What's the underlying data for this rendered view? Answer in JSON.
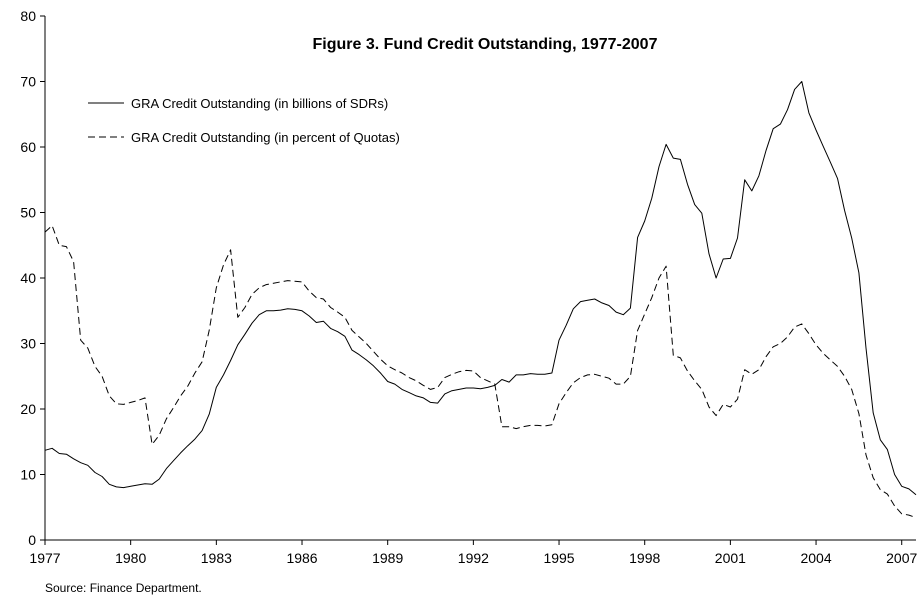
{
  "chart_data": {
    "type": "line",
    "title": "Figure 3. Fund Credit Outstanding, 1977-2007",
    "source": "Source: Finance Department.",
    "xlabel": "",
    "ylabel": "",
    "xlim": [
      1977,
      2007.5
    ],
    "ylim": [
      0,
      80
    ],
    "x_ticks": [
      "1977",
      "1980",
      "1983",
      "1986",
      "1989",
      "1992",
      "1995",
      "1998",
      "2001",
      "2004",
      "2007"
    ],
    "y_ticks": [
      "0",
      "10",
      "20",
      "30",
      "40",
      "50",
      "60",
      "70",
      "80"
    ],
    "grid": false,
    "legend_position": "top-left",
    "series": [
      {
        "name": "GRA Credit Outstanding (in billions of SDRs)",
        "style": "solid",
        "color": "#000000",
        "x": [
          1977.0,
          1977.25,
          1977.5,
          1977.75,
          1978.0,
          1978.25,
          1978.5,
          1978.75,
          1979.0,
          1979.25,
          1979.5,
          1979.75,
          1980.0,
          1980.25,
          1980.5,
          1980.75,
          1981.0,
          1981.25,
          1981.5,
          1981.75,
          1982.0,
          1982.25,
          1982.5,
          1982.75,
          1983.0,
          1983.25,
          1983.5,
          1983.75,
          1984.0,
          1984.25,
          1984.5,
          1984.75,
          1985.0,
          1985.25,
          1985.5,
          1985.75,
          1986.0,
          1986.25,
          1986.5,
          1986.75,
          1987.0,
          1987.25,
          1987.5,
          1987.75,
          1988.0,
          1988.25,
          1988.5,
          1988.75,
          1989.0,
          1989.25,
          1989.5,
          1989.75,
          1990.0,
          1990.25,
          1990.5,
          1990.75,
          1991.0,
          1991.25,
          1991.5,
          1991.75,
          1992.0,
          1992.25,
          1992.5,
          1992.75,
          1993.0,
          1993.25,
          1993.5,
          1993.75,
          1994.0,
          1994.25,
          1994.5,
          1994.75,
          1995.0,
          1995.25,
          1995.5,
          1995.75,
          1996.0,
          1996.25,
          1996.5,
          1996.75,
          1997.0,
          1997.25,
          1997.5,
          1997.75,
          1998.0,
          1998.25,
          1998.5,
          1998.75,
          1999.0,
          1999.25,
          1999.5,
          1999.75,
          2000.0,
          2000.25,
          2000.5,
          2000.75,
          2001.0,
          2001.25,
          2001.5,
          2001.75,
          2002.0,
          2002.25,
          2002.5,
          2002.75,
          2003.0,
          2003.25,
          2003.5,
          2003.75,
          2004.0,
          2004.25,
          2004.5,
          2004.75,
          2005.0,
          2005.25,
          2005.5,
          2005.75,
          2006.0,
          2006.25,
          2006.5,
          2006.75,
          2007.0,
          2007.25,
          2007.5
        ],
        "values": [
          13.7,
          14.0,
          13.2,
          13.1,
          12.4,
          11.8,
          11.4,
          10.3,
          9.7,
          8.5,
          8.1,
          8.0,
          8.2,
          8.4,
          8.6,
          8.5,
          9.3,
          10.9,
          12.1,
          13.3,
          14.4,
          15.4,
          16.7,
          19.2,
          23.3,
          25.2,
          27.4,
          29.8,
          31.4,
          33.1,
          34.4,
          35.0,
          35.0,
          35.1,
          35.3,
          35.2,
          35.0,
          34.2,
          33.2,
          33.4,
          32.3,
          31.8,
          31.1,
          29.0,
          28.3,
          27.5,
          26.6,
          25.5,
          24.2,
          23.8,
          23.0,
          22.5,
          22.0,
          21.7,
          21.0,
          20.9,
          22.3,
          22.8,
          23.0,
          23.2,
          23.2,
          23.1,
          23.3,
          23.6,
          24.5,
          24.1,
          25.2,
          25.2,
          25.4,
          25.3,
          25.3,
          25.5,
          30.5,
          32.8,
          35.3,
          36.4,
          36.6,
          36.8,
          36.2,
          35.8,
          34.8,
          34.4,
          35.4,
          46.2,
          48.7,
          52.2,
          57.0,
          60.4,
          58.3,
          58.1,
          54.3,
          51.2,
          49.9,
          43.7,
          40.0,
          42.9,
          43.0,
          46.1,
          55.0,
          53.3,
          55.6,
          59.5,
          62.8,
          63.5,
          65.7,
          68.8,
          70.0,
          65.2,
          62.6,
          60.1,
          57.7,
          55.2,
          50.3,
          46.1,
          40.8,
          29.3,
          19.4,
          15.3,
          13.8,
          10.0,
          8.2,
          7.8,
          6.9
        ]
      },
      {
        "name": "GRA Credit Outstanding (in percent of Quotas)",
        "style": "dashed",
        "color": "#000000",
        "x": [
          1977.0,
          1977.25,
          1977.5,
          1977.75,
          1978.0,
          1978.25,
          1978.5,
          1978.75,
          1979.0,
          1979.25,
          1979.5,
          1979.75,
          1980.0,
          1980.25,
          1980.5,
          1980.75,
          1981.0,
          1981.25,
          1981.5,
          1981.75,
          1982.0,
          1982.25,
          1982.5,
          1982.75,
          1983.0,
          1983.25,
          1983.5,
          1983.75,
          1984.0,
          1984.25,
          1984.5,
          1984.75,
          1985.0,
          1985.25,
          1985.5,
          1985.75,
          1986.0,
          1986.25,
          1986.5,
          1986.75,
          1987.0,
          1987.25,
          1987.5,
          1987.75,
          1988.0,
          1988.25,
          1988.5,
          1988.75,
          1989.0,
          1989.25,
          1989.5,
          1989.75,
          1990.0,
          1990.25,
          1990.5,
          1990.75,
          1991.0,
          1991.25,
          1991.5,
          1991.75,
          1992.0,
          1992.25,
          1992.5,
          1992.75,
          1993.0,
          1993.25,
          1993.5,
          1993.75,
          1994.0,
          1994.25,
          1994.5,
          1994.75,
          1995.0,
          1995.25,
          1995.5,
          1995.75,
          1996.0,
          1996.25,
          1996.5,
          1996.75,
          1997.0,
          1997.25,
          1997.5,
          1997.75,
          1998.0,
          1998.25,
          1998.5,
          1998.75,
          1999.0,
          1999.25,
          1999.5,
          1999.75,
          2000.0,
          2000.25,
          2000.5,
          2000.75,
          2001.0,
          2001.25,
          2001.5,
          2001.75,
          2002.0,
          2002.25,
          2002.5,
          2002.75,
          2003.0,
          2003.25,
          2003.5,
          2003.75,
          2004.0,
          2004.25,
          2004.5,
          2004.75,
          2005.0,
          2005.25,
          2005.5,
          2005.75,
          2006.0,
          2006.25,
          2006.5,
          2006.75,
          2007.0,
          2007.25,
          2007.5
        ],
        "values": [
          47.0,
          48.0,
          45.0,
          44.8,
          42.5,
          30.5,
          29.3,
          26.5,
          25.0,
          22.0,
          20.8,
          20.7,
          21.0,
          21.3,
          21.7,
          14.6,
          16.0,
          18.5,
          20.2,
          22.0,
          23.5,
          25.5,
          27.2,
          32.0,
          38.5,
          42.0,
          44.3,
          34.0,
          35.5,
          37.5,
          38.5,
          39.0,
          39.2,
          39.4,
          39.6,
          39.5,
          39.4,
          38.0,
          37.0,
          36.8,
          35.5,
          34.8,
          34.0,
          32.0,
          31.0,
          30.0,
          28.8,
          27.6,
          26.6,
          26.0,
          25.5,
          24.8,
          24.3,
          23.6,
          23.0,
          23.3,
          24.8,
          25.3,
          25.7,
          25.9,
          25.8,
          24.8,
          24.3,
          23.8,
          17.3,
          17.3,
          17.0,
          17.3,
          17.5,
          17.5,
          17.4,
          17.6,
          20.8,
          22.5,
          24.0,
          24.8,
          25.2,
          25.3,
          25.0,
          24.7,
          23.8,
          23.8,
          25.0,
          32.0,
          34.5,
          37.0,
          40.0,
          41.8,
          28.2,
          27.8,
          25.8,
          24.3,
          23.0,
          20.3,
          19.0,
          20.7,
          20.3,
          21.5,
          26.0,
          25.3,
          26.0,
          28.0,
          29.5,
          30.0,
          31.0,
          32.5,
          33.0,
          31.5,
          29.8,
          28.5,
          27.5,
          26.5,
          25.0,
          23.0,
          19.3,
          13.0,
          9.5,
          7.7,
          7.0,
          5.2,
          4.0,
          3.8,
          3.4
        ]
      }
    ]
  }
}
